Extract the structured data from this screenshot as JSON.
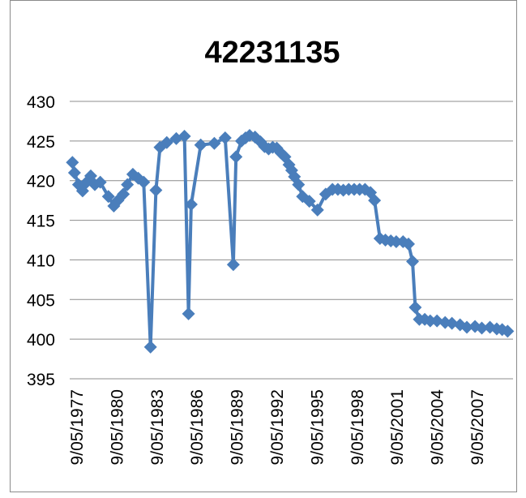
{
  "chart_data": {
    "type": "line",
    "title": "42231135",
    "xlabel": "",
    "ylabel": "",
    "ylim": [
      395,
      430
    ],
    "yticks": [
      395,
      400,
      405,
      410,
      415,
      420,
      425,
      430
    ],
    "xticks": [
      "9/05/1977",
      "9/05/1980",
      "9/05/1983",
      "9/05/1986",
      "9/05/1989",
      "9/05/1992",
      "9/05/1995",
      "9/05/1998",
      "9/05/2001",
      "9/05/2004",
      "9/05/2007"
    ],
    "xlim": [
      1977.35,
      2010.0
    ],
    "grid": true,
    "legend": "none",
    "marker": "diamond",
    "color": "#4a7ebb",
    "series": [
      {
        "x": [
          1977.55,
          1977.7,
          1978.0,
          1978.3,
          1978.6,
          1978.9,
          1979.2,
          1979.6,
          1980.2,
          1980.6,
          1980.9,
          1981.3,
          1981.6,
          1982.0,
          1982.4,
          1982.8,
          1983.3,
          1983.7,
          1984.0,
          1984.5,
          1985.2,
          1985.8,
          1986.1,
          1986.3,
          1987.0,
          1988.0,
          1988.8,
          1989.4,
          1989.6,
          1990.0,
          1990.3,
          1990.6,
          1991.0,
          1991.4,
          1991.7,
          1992.0,
          1992.3,
          1992.6,
          1992.9,
          1993.2,
          1993.5,
          1993.7,
          1993.9,
          1994.2,
          1994.5,
          1995.0,
          1995.6,
          1996.2,
          1996.7,
          1997.1,
          1997.5,
          1997.9,
          1998.3,
          1998.7,
          1999.1,
          1999.5,
          1999.8,
          2000.2,
          2000.6,
          2001.0,
          2001.4,
          2001.9,
          2002.3,
          2002.6,
          2002.8,
          2003.1,
          2003.5,
          2003.9,
          2004.4,
          2005.0,
          2005.5,
          2006.1,
          2006.6,
          2007.2,
          2007.7,
          2008.3,
          2008.8,
          2009.2,
          2009.6
        ],
        "values": [
          422.3,
          421.0,
          419.5,
          418.7,
          419.8,
          420.6,
          419.5,
          419.8,
          418.0,
          416.8,
          417.5,
          418.3,
          419.5,
          420.8,
          420.3,
          419.8,
          399.0,
          418.8,
          424.2,
          424.8,
          425.3,
          425.6,
          403.2,
          417.0,
          424.5,
          424.7,
          425.4,
          409.4,
          423.0,
          425.0,
          425.4,
          425.7,
          425.5,
          424.9,
          424.3,
          424.0,
          424.2,
          424.1,
          423.5,
          423.0,
          422.0,
          421.3,
          420.5,
          419.5,
          418.0,
          417.4,
          416.3,
          418.3,
          418.9,
          418.9,
          418.8,
          418.9,
          418.9,
          418.9,
          418.9,
          418.5,
          417.5,
          412.7,
          412.5,
          412.4,
          412.3,
          412.3,
          412.0,
          409.8,
          404.0,
          402.5,
          402.5,
          402.3,
          402.3,
          402.1,
          402.0,
          401.8,
          401.5,
          401.6,
          401.4,
          401.5,
          401.3,
          401.2,
          401.0
        ]
      }
    ]
  }
}
